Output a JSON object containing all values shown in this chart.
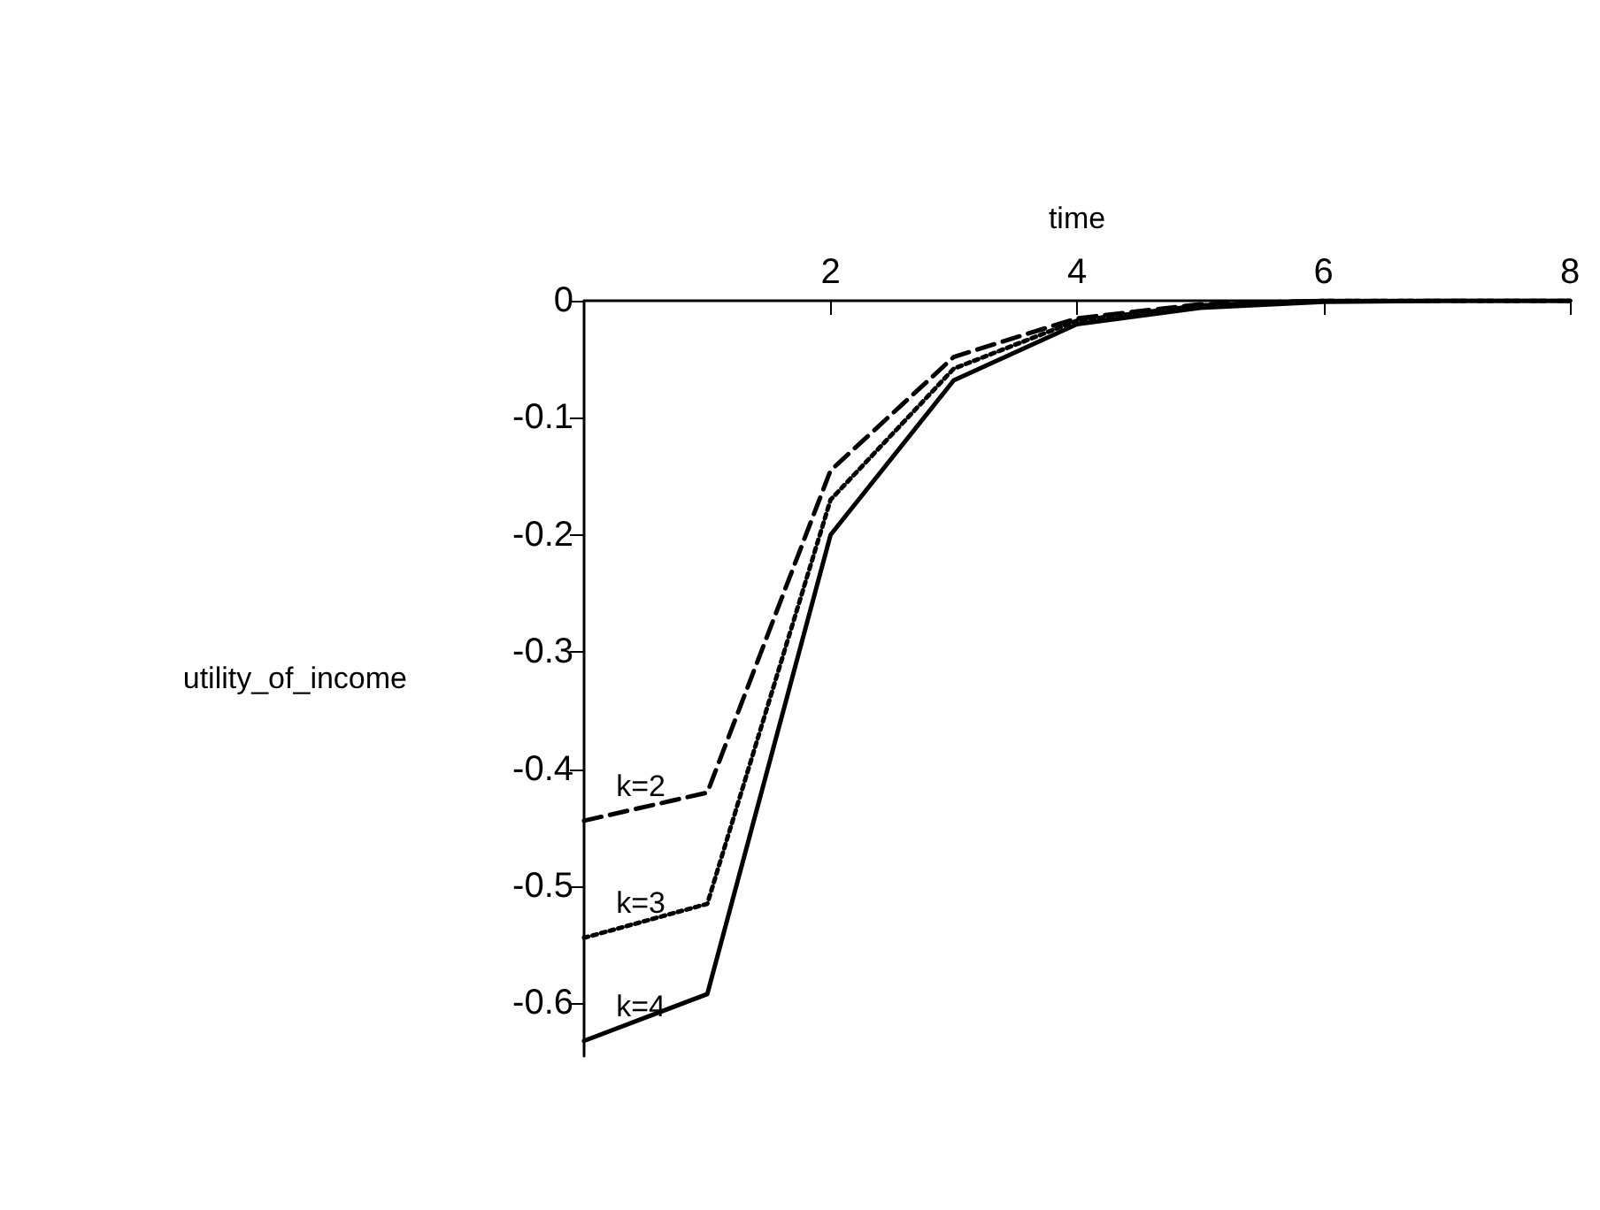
{
  "chart_data": {
    "type": "line",
    "xlabel": "time",
    "ylabel": "utility_of_income",
    "x": [
      0,
      1,
      2,
      3,
      4,
      5,
      6,
      7,
      8
    ],
    "xlim": [
      0,
      8
    ],
    "xticks": [
      2,
      4,
      6,
      8
    ],
    "ylim": [
      -0.645,
      0
    ],
    "yticks": [
      0,
      -0.1,
      -0.2,
      -0.3,
      -0.4,
      -0.5,
      -0.6
    ],
    "grid": false,
    "legend": false,
    "marker": "none",
    "series": [
      {
        "name": "k=2",
        "color": "#000000",
        "line_style": "dashed",
        "values": [
          -0.444,
          -0.42,
          -0.145,
          -0.048,
          -0.015,
          -0.003,
          0,
          0,
          0
        ]
      },
      {
        "name": "k=3",
        "color": "#000000",
        "line_style": "dotted",
        "values": [
          -0.544,
          -0.515,
          -0.17,
          -0.058,
          -0.017,
          -0.004,
          0,
          0,
          0
        ]
      },
      {
        "name": "k=4",
        "color": "#000000",
        "line_style": "solid",
        "values": [
          -0.632,
          -0.592,
          -0.2,
          -0.068,
          -0.02,
          -0.006,
          -0.001,
          0,
          0
        ]
      }
    ]
  }
}
